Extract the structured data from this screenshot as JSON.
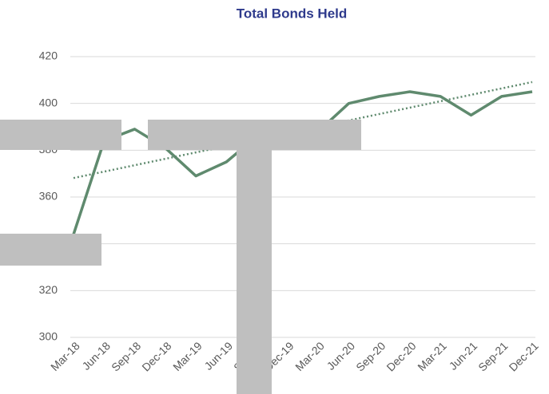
{
  "chart_data": {
    "type": "line",
    "title": "Total Bonds Held",
    "categories": [
      "Mar-18",
      "Jun-18",
      "Sep-18",
      "Dec-18",
      "Mar-19",
      "Jun-19",
      "Sep-19",
      "Dec-19",
      "Mar-20",
      "Jun-20",
      "Sep-20",
      "Dec-20",
      "Mar-21",
      "Jun-21",
      "Sep-21",
      "Dec-21"
    ],
    "series": [
      {
        "name": "Total Bonds Held",
        "color": "#5f8a6e",
        "values": [
          344,
          384,
          389,
          381,
          369,
          375,
          386,
          388,
          388,
          400,
          403,
          405,
          403,
          395,
          403,
          405
        ]
      }
    ],
    "ylim": [
      300,
      420
    ],
    "yticks": [
      300,
      320,
      340,
      360,
      380,
      400,
      420
    ],
    "grid": true,
    "trendline": true,
    "trendline_color": "#5f8a6e"
  }
}
